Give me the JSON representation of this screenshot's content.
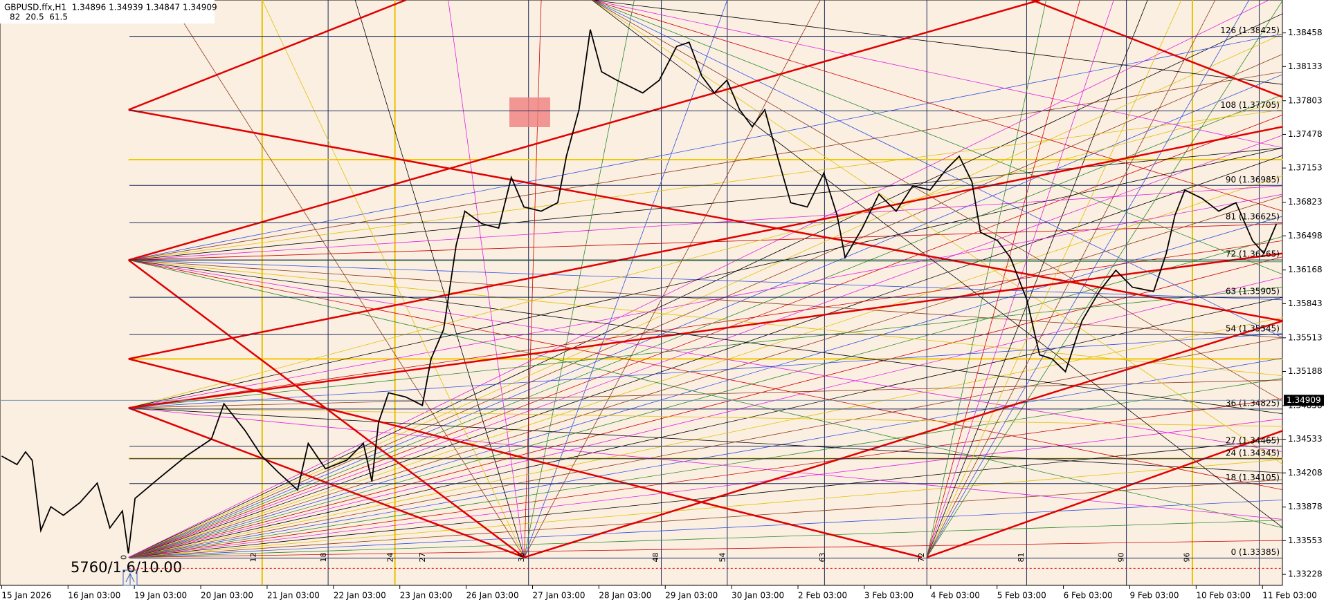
{
  "chart_data": {
    "type": "line",
    "title": "GBPUSD.ffx,H1  1.34896 1.34939 1.34847 1.34909",
    "subtitle": "82  20.5  61.5",
    "annotation": "5760/1.6/10.00",
    "color": "#000000",
    "categories": [
      "15 Jan 2026",
      "16 Jan 03:00",
      "19 Jan 03:00",
      "20 Jan 03:00",
      "21 Jan 03:00",
      "22 Jan 03:00",
      "23 Jan 03:00",
      "26 Jan 03:00",
      "27 Jan 03:00",
      "28 Jan 03:00",
      "29 Jan 03:00",
      "30 Jan 03:00",
      "2 Feb 03:00",
      "3 Feb 03:00",
      "4 Feb 03:00",
      "5 Feb 03:00",
      "6 Feb 03:00",
      "9 Feb 03:00",
      "10 Feb 03:00",
      "11 Feb 03:00"
    ],
    "x": [
      0,
      0.23,
      0.36,
      0.46,
      0.59,
      0.74,
      0.93,
      1.18,
      1.44,
      1.63,
      1.82,
      1.91,
      2.01,
      2.39,
      2.78,
      3.16,
      3.35,
      3.67,
      3.92,
      4.18,
      4.46,
      4.62,
      4.88,
      5.2,
      5.45,
      5.58,
      5.68,
      5.83,
      6.09,
      6.34,
      6.47,
      6.66,
      6.85,
      6.98,
      7.24,
      7.49,
      7.68,
      7.87,
      8.13,
      8.38,
      8.51,
      8.7,
      8.87,
      9.04,
      9.27,
      9.66,
      9.91,
      10.17,
      10.36,
      10.55,
      10.74,
      10.93,
      11.12,
      11.31,
      11.5,
      11.69,
      11.89,
      12.14,
      12.39,
      12.59,
      12.71,
      12.97,
      13.22,
      13.48,
      13.73,
      13.99,
      14.24,
      14.43,
      14.62,
      14.75,
      15.01,
      15.2,
      15.45,
      15.64,
      15.83,
      16.03,
      16.28,
      16.54,
      16.79,
      17.04,
      17.36,
      17.55,
      17.68,
      17.83,
      18.09,
      18.34,
      18.6,
      18.85,
      19.02,
      19.21
    ],
    "values": [
      1.3437,
      1.34289,
      1.34411,
      1.3433,
      1.33652,
      1.33881,
      1.33799,
      1.33922,
      1.34109,
      1.33677,
      1.3384,
      1.33432,
      1.33962,
      1.34166,
      1.3437,
      1.34534,
      1.34876,
      1.34615,
      1.3437,
      1.34207,
      1.34044,
      1.34493,
      1.34248,
      1.3433,
      1.34493,
      1.34126,
      1.34697,
      1.34982,
      1.34941,
      1.3486,
      1.35309,
      1.35594,
      1.3641,
      1.36736,
      1.36614,
      1.36573,
      1.37063,
      1.36777,
      1.36736,
      1.36818,
      1.37267,
      1.37716,
      1.38491,
      1.38083,
      1.38001,
      1.37879,
      1.38001,
      1.38327,
      1.38368,
      1.38042,
      1.37879,
      1.38001,
      1.37716,
      1.37552,
      1.37716,
      1.37267,
      1.36818,
      1.36777,
      1.37104,
      1.36696,
      1.36288,
      1.36573,
      1.369,
      1.36736,
      1.36981,
      1.3694,
      1.37144,
      1.37267,
      1.37022,
      1.36532,
      1.36451,
      1.36288,
      1.3588,
      1.35349,
      1.35309,
      1.35186,
      1.35676,
      1.35961,
      1.36165,
      1.36002,
      1.35961,
      1.36329,
      1.36696,
      1.3694,
      1.36859,
      1.36736,
      1.36818,
      1.36451,
      1.36329,
      1.36614
    ],
    "xlim": [
      -0.025,
      19.3
    ],
    "ylim": [
      1.33122,
      1.38776
    ],
    "yticks": [
      1.38458,
      1.38133,
      1.37803,
      1.37478,
      1.37153,
      1.36823,
      1.36498,
      1.36168,
      1.35843,
      1.35513,
      1.35188,
      1.34858,
      1.34533,
      1.34208,
      1.33878,
      1.33553,
      1.33228
    ],
    "last_price": 1.34909,
    "levels": [
      {
        "value": 1.38425,
        "label": "126 (1.38425)"
      },
      {
        "value": 1.37705,
        "label": "108 (1.37705)"
      },
      {
        "value": 1.36985,
        "label": "90 (1.36985)"
      },
      {
        "value": 1.36625,
        "label": "81 (1.36625)"
      },
      {
        "value": 1.36265,
        "label": "72 (1.36265)"
      },
      {
        "value": 1.35905,
        "label": "63 (1.35905)"
      },
      {
        "value": 1.35545,
        "label": "54 (1.35545)"
      },
      {
        "value": 1.34825,
        "label": "36 (1.34825)"
      },
      {
        "value": 1.34465,
        "label": "27 (1.34465)"
      },
      {
        "value": 1.34345,
        "label": "24 (1.34345)"
      },
      {
        "value": 1.34105,
        "label": "18 (1.34105)"
      },
      {
        "value": 1.33385,
        "label": "0 (1.33385)"
      }
    ],
    "gann_counts": [
      0,
      12,
      18,
      24,
      27,
      36,
      48,
      54,
      63,
      72,
      81,
      90,
      96
    ]
  }
}
